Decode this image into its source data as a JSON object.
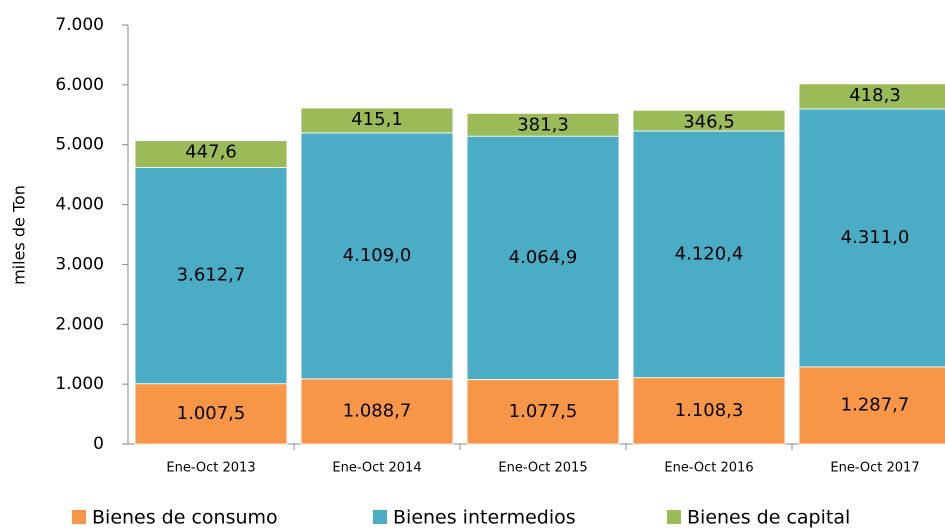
{
  "chart_data": {
    "type": "stacked_bar",
    "ylabel": "miles de Ton",
    "categories": [
      "Ene-Oct 2013",
      "Ene-Oct 2014",
      "Ene-Oct 2015",
      "Ene-Oct 2016",
      "Ene-Oct 2017"
    ],
    "series": [
      {
        "name": "Bienes de consumo",
        "color": "#f79646",
        "values": [
          1007.5,
          1088.7,
          1077.5,
          1108.3,
          1287.7
        ],
        "value_labels": [
          "1.007,5",
          "1.088,7",
          "1.077,5",
          "1.108,3",
          "1.287,7"
        ]
      },
      {
        "name": "Bienes intermedios",
        "color": "#4bacc6",
        "values": [
          3612.7,
          4109.0,
          4064.9,
          4120.4,
          4311.0
        ],
        "value_labels": [
          "3.612,7",
          "4.109,0",
          "4.064,9",
          "4.120,4",
          "4.311,0"
        ]
      },
      {
        "name": "Bienes de capital",
        "color": "#9bbb59",
        "values": [
          447.6,
          415.1,
          381.3,
          346.5,
          418.3
        ],
        "value_labels": [
          "447,6",
          "415,1",
          "381,3",
          "346,5",
          "418,3"
        ]
      }
    ],
    "ylim": [
      0,
      7000
    ],
    "yticks": [
      0,
      {
        "value": 1000,
        "label": "1.000"
      },
      {
        "value": 2000,
        "label": "2.000"
      },
      {
        "value": 3000,
        "label": "3.000"
      },
      {
        "value": 4000,
        "label": "4.000"
      },
      {
        "value": 5000,
        "label": "5.000"
      },
      {
        "value": 6000,
        "label": "6.000"
      },
      {
        "value": 7000,
        "label": "7.000"
      }
    ],
    "legend": "bottom"
  }
}
